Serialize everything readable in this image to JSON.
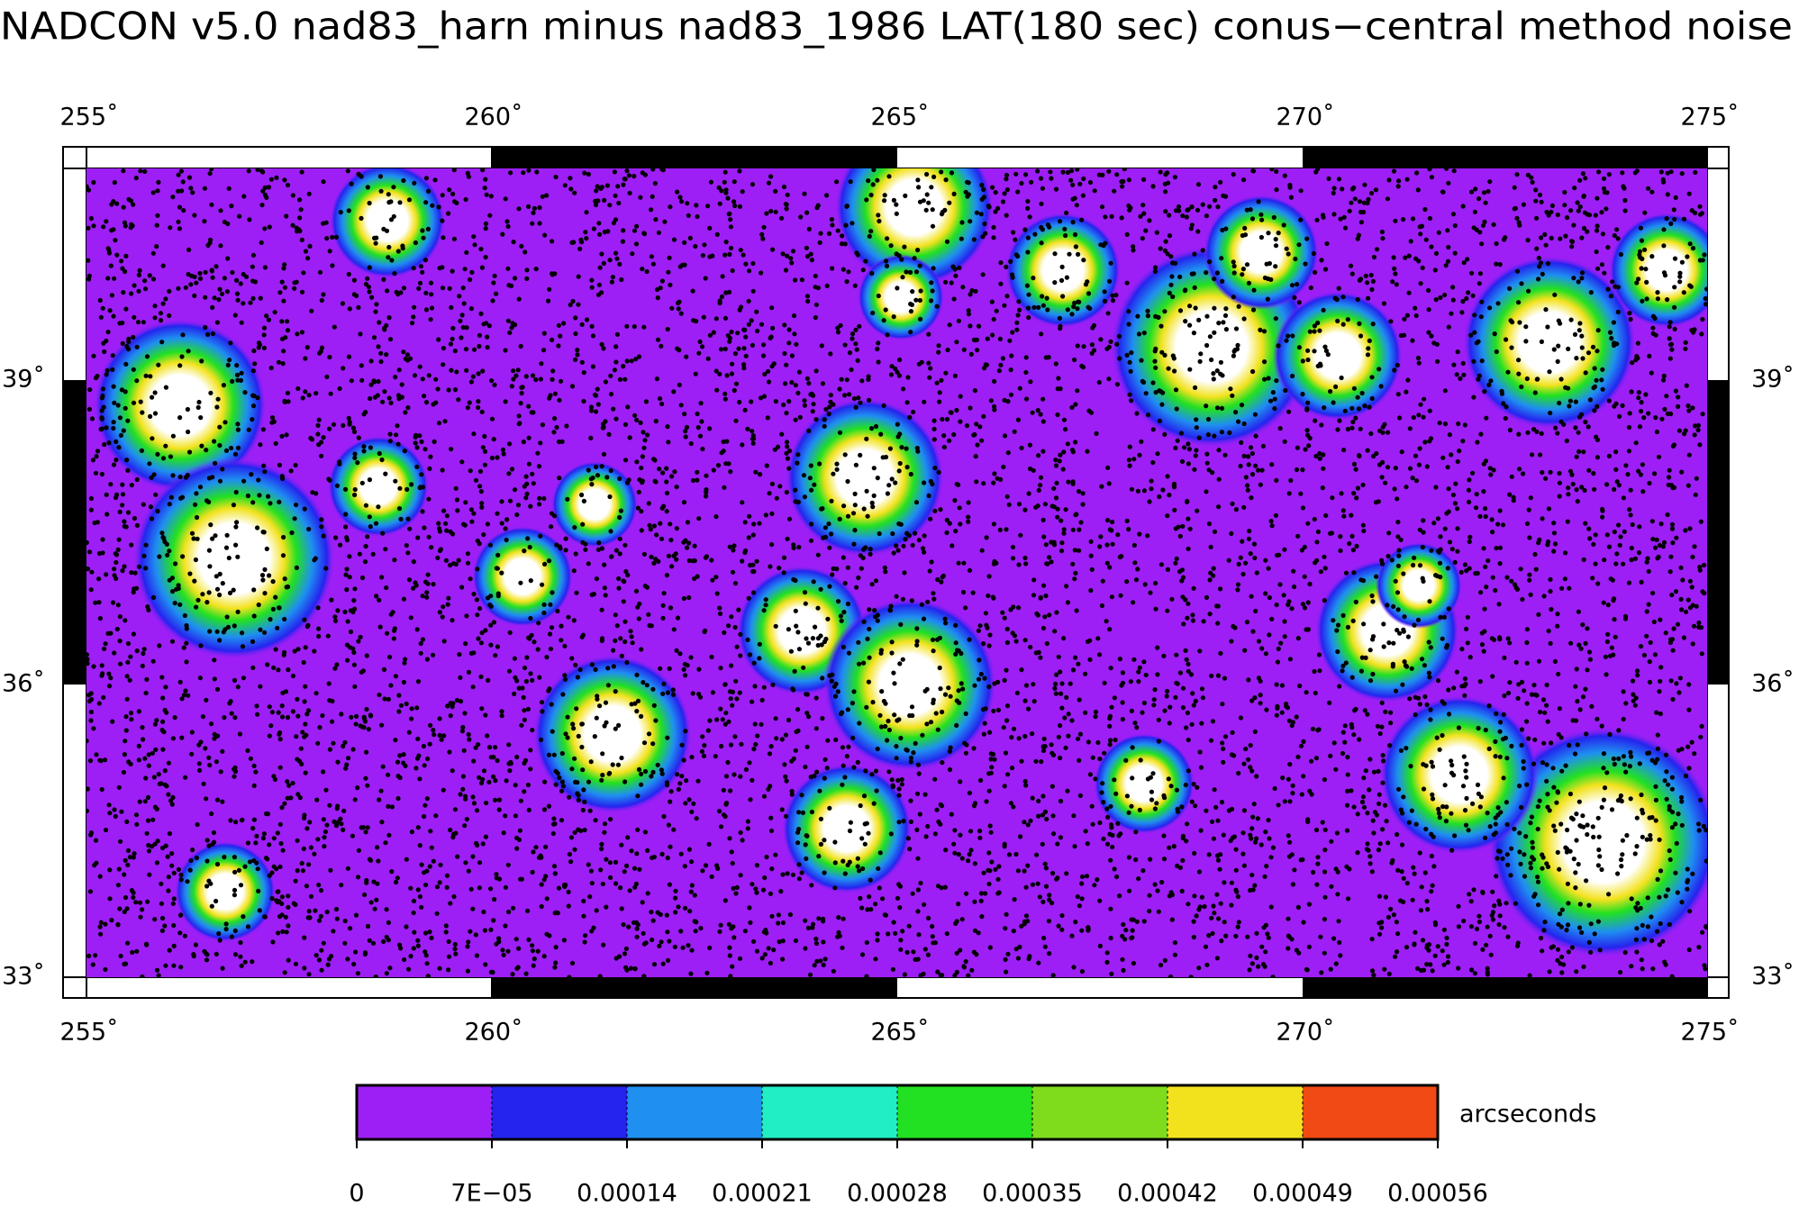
{
  "title": "NADCON v5.0 nad83_harn minus nad83_1986 LAT(180 sec) conus−central method noise",
  "map": {
    "x_tick_labels": [
      "255˚",
      "260˚",
      "265˚",
      "270˚",
      "275˚"
    ],
    "y_tick_labels": [
      "39˚",
      "36˚",
      "33˚"
    ]
  },
  "colorbar": {
    "unit": "arcseconds",
    "labels": [
      "0",
      "7E−05",
      "0.00014",
      "0.00021",
      "0.00028",
      "0.00035",
      "0.00042",
      "0.00049",
      "0.00056"
    ],
    "colors": [
      "#9d1ff5",
      "#2424ee",
      "#1f8ff0",
      "#22eec4",
      "#22e022",
      "#7fdc1c",
      "#f2e21e",
      "#f24a14"
    ]
  }
}
